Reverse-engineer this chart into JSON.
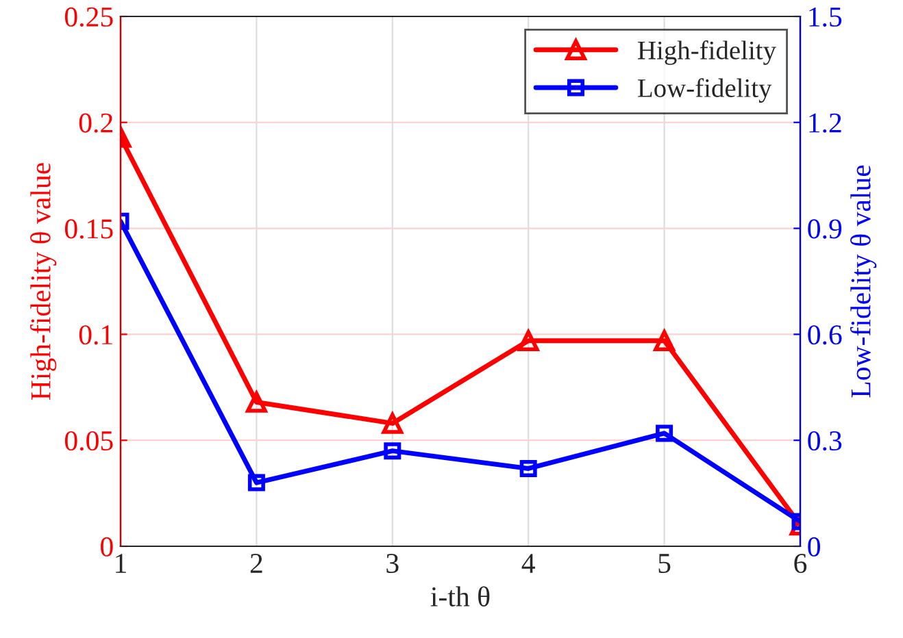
{
  "chart_data": {
    "type": "line",
    "xlabel": "i-th θ",
    "ylabel": "High-fidelity θ value",
    "y2label": "Low-fidelity θ value",
    "x": [
      1,
      2,
      3,
      4,
      5,
      6
    ],
    "series": [
      {
        "name": "High-fidelity",
        "color": "#ff0000",
        "marker": "triangle",
        "values": [
          0.193,
          0.068,
          0.058,
          0.097,
          0.097,
          0.01
        ]
      },
      {
        "name": "Low-fidelity",
        "color": "#0000ff",
        "marker": "square",
        "axis": "y2",
        "values": [
          0.92,
          0.18,
          0.27,
          0.22,
          0.32,
          0.07
        ]
      }
    ],
    "xlim": [
      1,
      6
    ],
    "xticks": [
      1,
      2,
      3,
      4,
      5,
      6
    ],
    "ylim": [
      0,
      0.25
    ],
    "yticks": [
      0,
      0.05,
      0.1,
      0.15,
      0.2,
      0.25
    ],
    "y2lim": [
      0,
      1.5
    ],
    "y2ticks": [
      0,
      0.3,
      0.6,
      0.9,
      1.2,
      1.5
    ],
    "grid": true,
    "legend": "top right",
    "line_style": "solid"
  }
}
